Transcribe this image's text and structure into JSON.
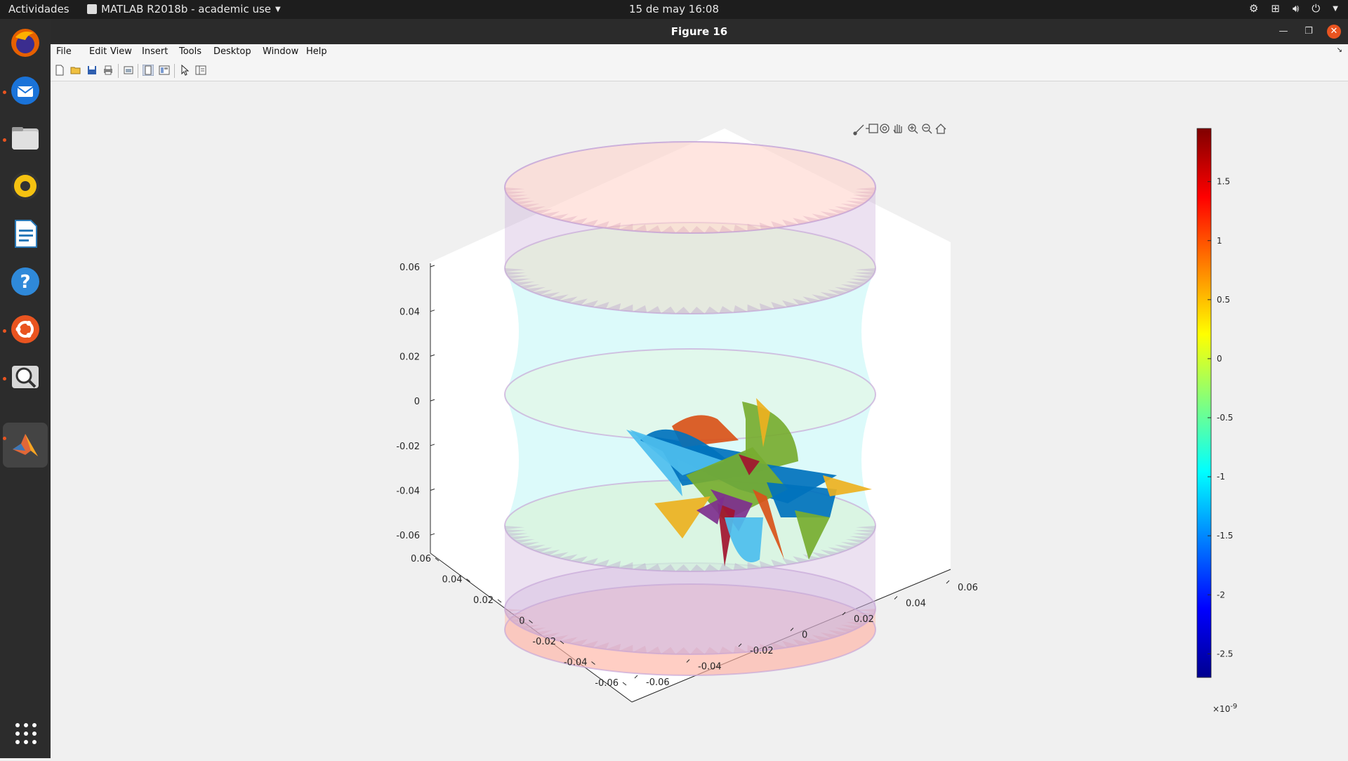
{
  "topbar": {
    "activities": "Actividades",
    "app_name": "MATLAB R2018b - academic use",
    "clock": "15 de may  16:08"
  },
  "window": {
    "title": "Figure 16",
    "menu": [
      "File",
      "Edit",
      "View",
      "Insert",
      "Tools",
      "Desktop",
      "Window",
      "Help"
    ]
  },
  "dock_apps": [
    "firefox-icon",
    "thunderbird-icon",
    "files-icon",
    "rhythmbox-icon",
    "writer-icon",
    "help-icon",
    "ubuntu-software-icon",
    "image-viewer-icon",
    "matlab-icon"
  ],
  "toolbar_icons": [
    "new-figure-icon",
    "open-file-icon",
    "save-icon",
    "print-icon",
    "link-plot-icon",
    "hide-plot-tools-icon",
    "show-plot-tools-icon",
    "edit-plot-icon",
    "property-inspector-icon"
  ],
  "axes_toolbar_icons": [
    "brush-icon",
    "data-tips-icon",
    "rotate-3d-icon",
    "pan-icon",
    "zoom-in-icon",
    "zoom-out-icon",
    "restore-view-icon"
  ],
  "chart_data": {
    "type": "surface3d",
    "z_ticks": [
      "0.06",
      "0.04",
      "0.02",
      "0",
      "-0.02",
      "-0.04",
      "-0.06"
    ],
    "x_ticks": [
      "0.06",
      "0.04",
      "0.02",
      "0",
      "-0.02",
      "-0.04",
      "-0.06"
    ],
    "y_ticks": [
      "0.06",
      "0.04",
      "0.02",
      "0",
      "-0.02",
      "-0.04",
      "-0.06"
    ],
    "zlim": [
      -0.06,
      0.06
    ],
    "xlim": [
      -0.06,
      0.06
    ],
    "ylim": [
      -0.06,
      0.06
    ],
    "colorbar": {
      "ticks": [
        "1.5",
        "1",
        "0.5",
        "0",
        "-0.5",
        "-1",
        "-1.5",
        "-2",
        "-2.5"
      ],
      "tick_values": [
        1.5,
        1,
        0.5,
        0,
        -0.5,
        -1,
        -1.5,
        -2,
        -2.5
      ],
      "range": [
        -2.7,
        1.95
      ],
      "exponent_base": "×10",
      "exponent_power": "-9",
      "colormap": "jet"
    },
    "colors": {
      "outer_surface": "#ffb3a3",
      "inner_surface": "#a8f2f2",
      "rim": "#c8a8d8",
      "blades": [
        "#0072bd",
        "#d95319",
        "#edb120",
        "#7e2f8e",
        "#77ac30",
        "#4dbeee",
        "#a2142f"
      ]
    }
  }
}
